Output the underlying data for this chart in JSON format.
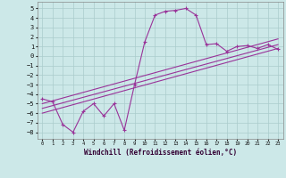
{
  "xlabel": "Windchill (Refroidissement éolien,°C)",
  "bg_color": "#cce8e8",
  "grid_color": "#aacccc",
  "line_color": "#993399",
  "xlim": [
    -0.5,
    23.5
  ],
  "ylim": [
    -8.7,
    5.7
  ],
  "xticks": [
    0,
    1,
    2,
    3,
    4,
    5,
    6,
    7,
    8,
    9,
    10,
    11,
    12,
    13,
    14,
    15,
    16,
    17,
    18,
    19,
    20,
    21,
    22,
    23
  ],
  "yticks": [
    5,
    4,
    3,
    2,
    1,
    0,
    -1,
    -2,
    -3,
    -4,
    -5,
    -6,
    -7,
    -8
  ],
  "curve1_x": [
    0,
    1,
    2,
    3,
    4,
    5,
    6,
    7,
    8,
    9,
    10,
    11,
    12,
    13,
    14,
    15,
    16,
    17,
    18,
    19,
    20,
    21,
    22,
    23
  ],
  "curve1_y": [
    -4.5,
    -4.8,
    -7.2,
    -8.0,
    -5.8,
    -5.0,
    -6.3,
    -5.0,
    -7.8,
    -3.0,
    1.5,
    4.3,
    4.7,
    4.8,
    5.0,
    4.3,
    1.2,
    1.3,
    0.5,
    1.0,
    1.1,
    0.8,
    1.2,
    0.7
  ],
  "line1_x": [
    0,
    23
  ],
  "line1_y": [
    -5.5,
    1.2
  ],
  "line2_x": [
    0,
    23
  ],
  "line2_y": [
    -5.0,
    1.8
  ],
  "line3_x": [
    0,
    23
  ],
  "line3_y": [
    -6.0,
    0.8
  ]
}
